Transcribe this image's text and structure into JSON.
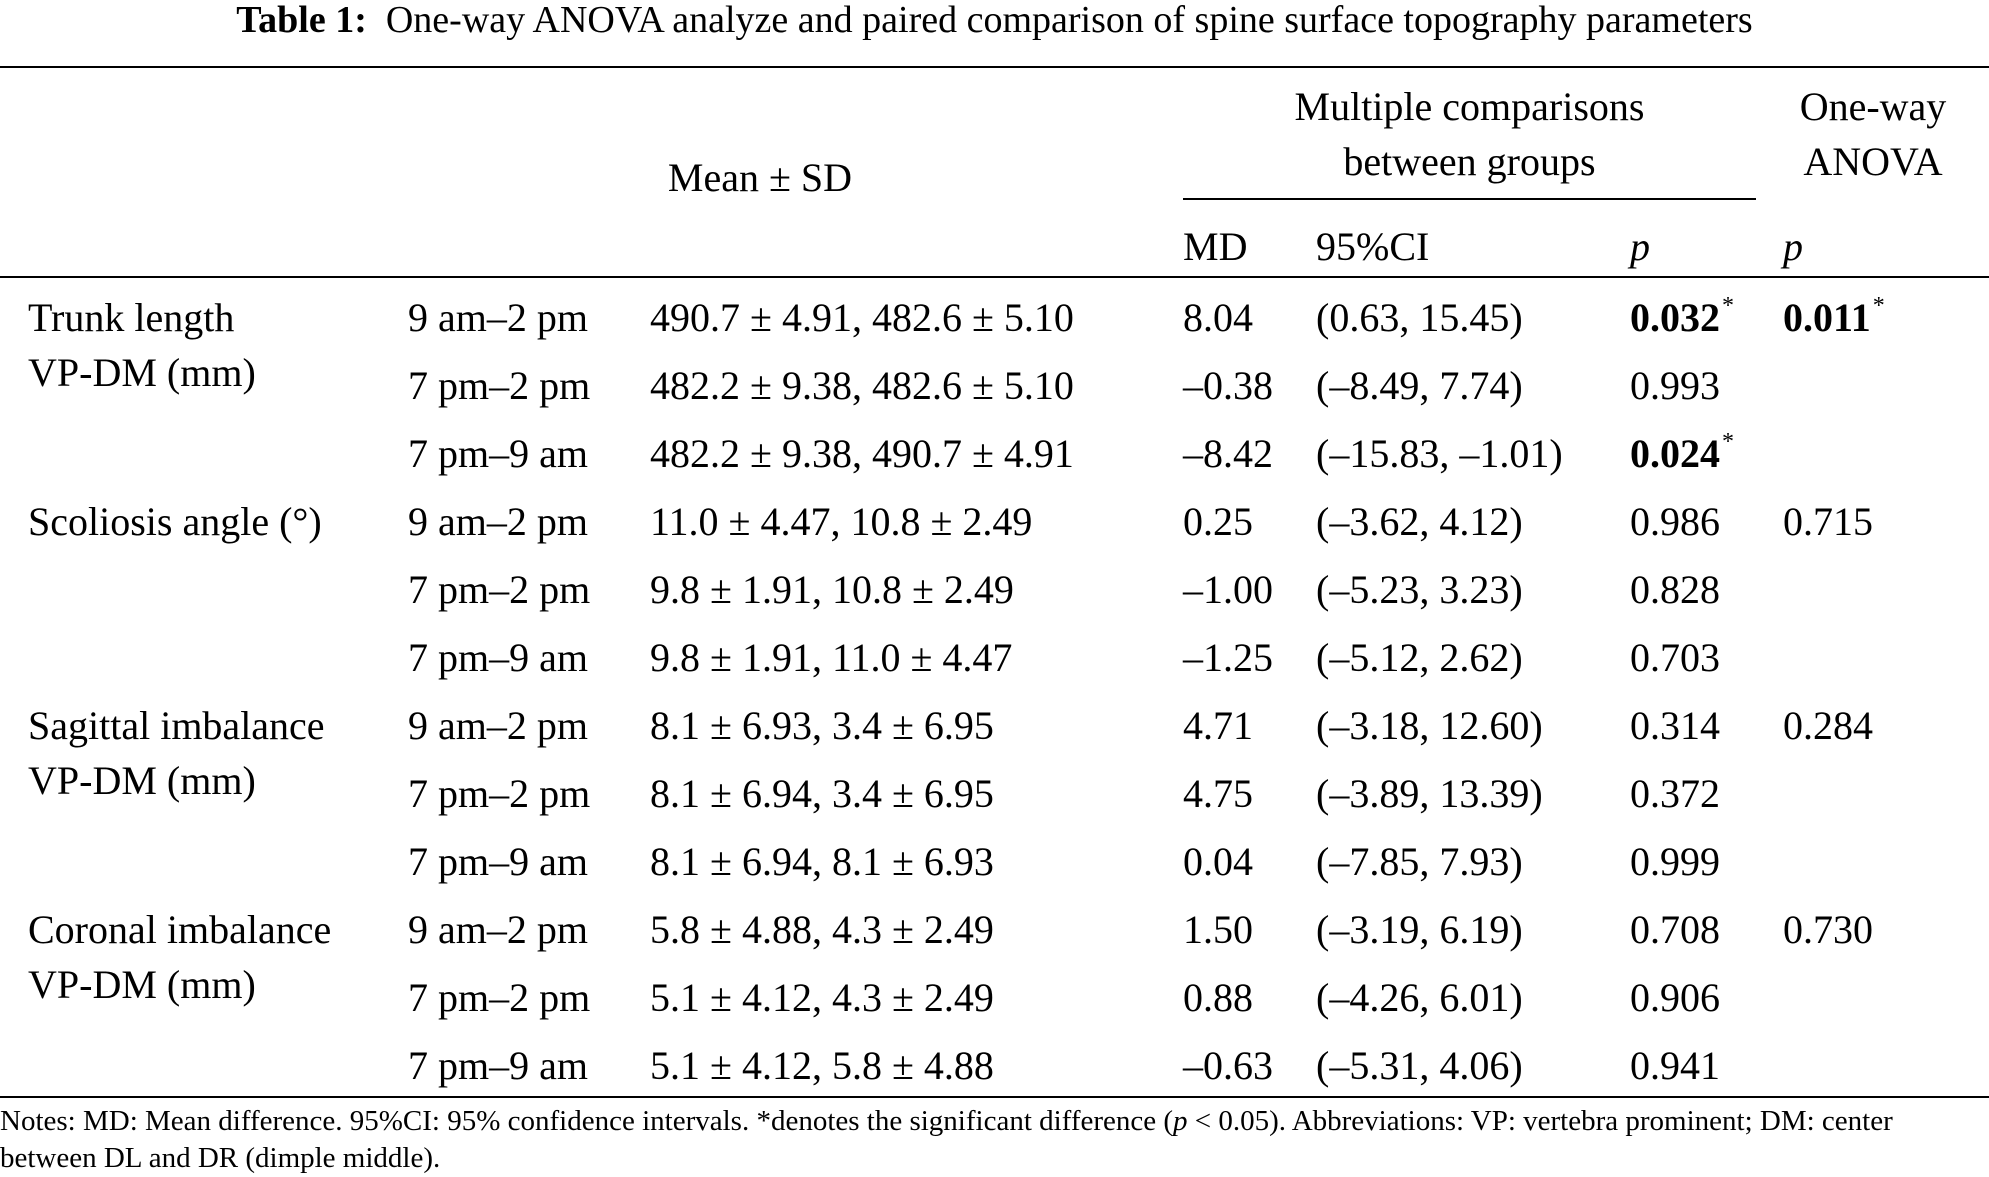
{
  "caption": {
    "label": "Table 1:",
    "title": "One-way ANOVA analyze and paired comparison of spine surface topography parameters"
  },
  "header": {
    "mean_sd": "Mean ± SD",
    "multiple_line1": "Multiple comparisons",
    "multiple_line2": "between groups",
    "anova_line1": "One-way",
    "anova_line2": "ANOVA",
    "md": "MD",
    "ci": "95%CI",
    "p": "p",
    "p2": "p"
  },
  "rows": [
    {
      "param1": "Trunk length",
      "param2": "VP-DM (mm)",
      "time": "9 am–2 pm",
      "mean": "490.7 ± 4.91, 482.6 ± 5.10",
      "md": "8.04",
      "ci": "(0.63, 15.45)",
      "p": "0.032",
      "p_sig": "*",
      "anova": "0.011",
      "anova_sig": "*"
    },
    {
      "time": "7 pm–2 pm",
      "mean": "482.2 ± 9.38, 482.6 ± 5.10",
      "md": "–0.38",
      "ci": "(–8.49, 7.74)",
      "p": "0.993"
    },
    {
      "time": "7 pm–9 am",
      "mean": "482.2 ± 9.38, 490.7 ± 4.91",
      "md": "–8.42",
      "ci": "(–15.83, –1.01)",
      "p": "0.024",
      "p_sig": "*"
    },
    {
      "param1": "Scoliosis angle (°)",
      "time": "9 am–2 pm",
      "mean": "11.0 ± 4.47, 10.8 ± 2.49",
      "md": "0.25",
      "ci": "(–3.62, 4.12)",
      "p": "0.986",
      "anova": "0.715"
    },
    {
      "time": "7 pm–2 pm",
      "mean": "9.8 ± 1.91, 10.8 ± 2.49",
      "md": "–1.00",
      "ci": "(–5.23, 3.23)",
      "p": "0.828"
    },
    {
      "time": "7 pm–9 am",
      "mean": "9.8 ± 1.91, 11.0 ± 4.47",
      "md": "–1.25",
      "ci": "(–5.12, 2.62)",
      "p": "0.703"
    },
    {
      "param1": "Sagittal imbalance",
      "param2": "VP-DM (mm)",
      "time": "9 am–2 pm",
      "mean": "8.1 ± 6.93, 3.4 ± 6.95",
      "md": "4.71",
      "ci": "(–3.18, 12.60)",
      "p": "0.314",
      "anova": "0.284"
    },
    {
      "time": "7 pm–2 pm",
      "mean": "8.1 ± 6.94, 3.4 ± 6.95",
      "md": "4.75",
      "ci": "(–3.89, 13.39)",
      "p": "0.372"
    },
    {
      "time": "7 pm–9 am",
      "mean": "8.1 ± 6.94, 8.1 ± 6.93",
      "md": "0.04",
      "ci": "(–7.85, 7.93)",
      "p": "0.999"
    },
    {
      "param1": "Coronal imbalance",
      "param2": "VP-DM (mm)",
      "time": "9 am–2 pm",
      "mean": "5.8 ± 4.88, 4.3 ± 2.49",
      "md": "1.50",
      "ci": "(–3.19, 6.19)",
      "p": "0.708",
      "anova": "0.730"
    },
    {
      "time": "7 pm–2 pm",
      "mean": "5.1 ± 4.12, 4.3 ± 2.49",
      "md": "0.88",
      "ci": "(–4.26, 6.01)",
      "p": "0.906"
    },
    {
      "time": "7 pm–9 am",
      "mean": "5.1 ± 4.12, 5.8 ± 4.88",
      "md": "–0.63",
      "ci": "(–5.31, 4.06)",
      "p": "0.941"
    }
  ],
  "notes": {
    "part1": "Notes: MD: Mean difference. 95%CI: 95% confidence intervals. *denotes the significant difference (",
    "p": "p",
    "part2": " < 0.05). Abbreviations: VP: vertebra prominent; DM: center between DL and DR (dimple middle)."
  }
}
